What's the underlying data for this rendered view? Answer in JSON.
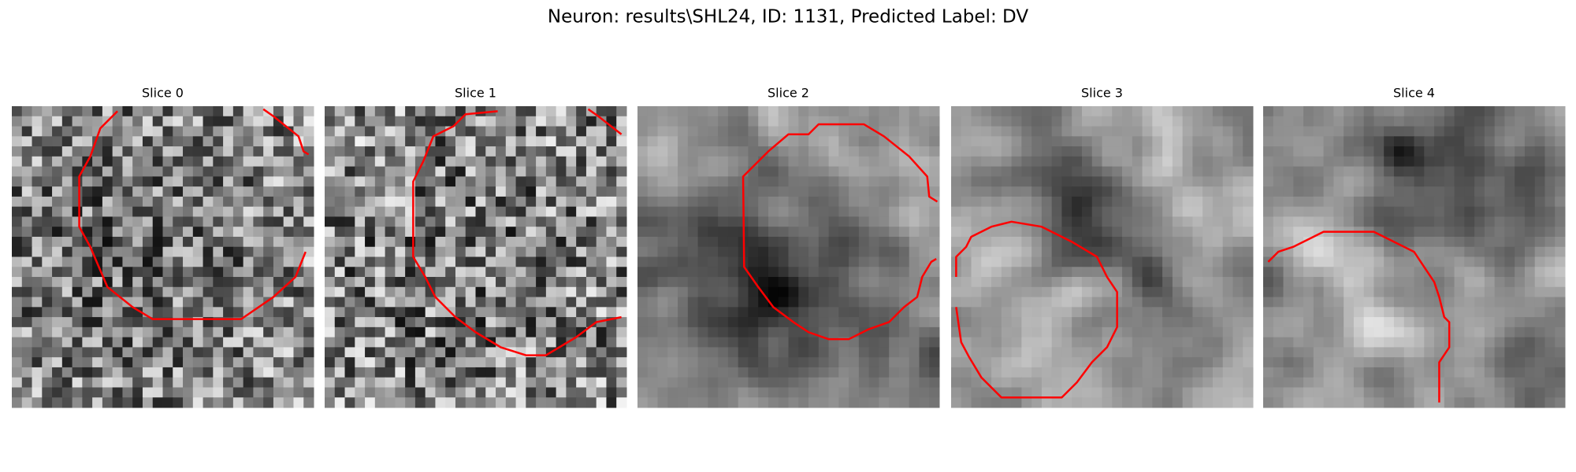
{
  "title": "Neuron: results\\SHL24, ID: 1131, Predicted Label: DV",
  "panels": [
    {
      "title": "Slice 0"
    },
    {
      "title": "Slice 1"
    },
    {
      "title": "Slice 2"
    },
    {
      "title": "Slice 3"
    },
    {
      "title": "Slice 4"
    }
  ]
}
